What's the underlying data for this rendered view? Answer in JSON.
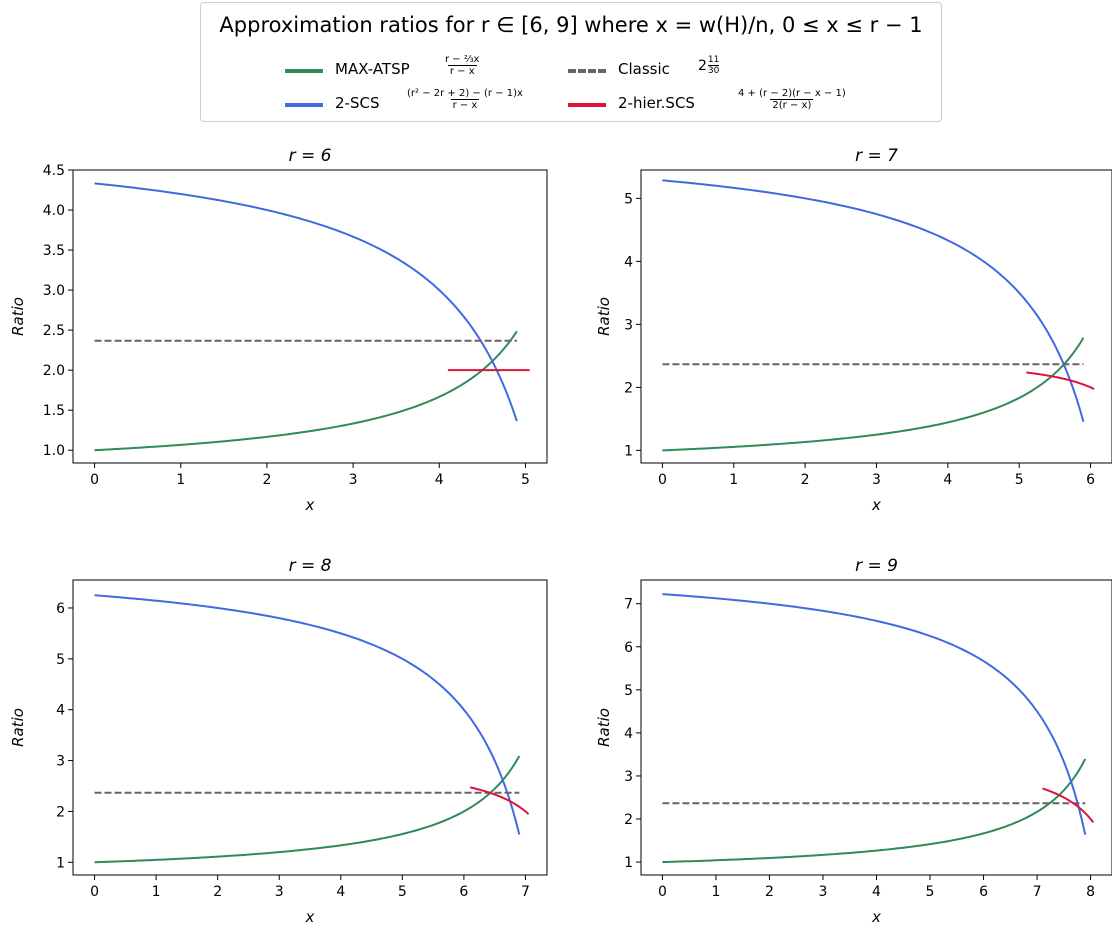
{
  "legend": {
    "title": "Approximation ratios for r ∈ [6, 9] where x = w(H)/n, 0 ≤ x ≤ r − 1",
    "items": [
      {
        "label": "MAX-ATSP",
        "formula_num": "r − ⅔x",
        "formula_den": "r − x",
        "color": "#2e8b57",
        "style": "solid"
      },
      {
        "label": "2-SCS",
        "formula_num": "(r² − 2r + 2) − (r − 1)x",
        "formula_den": "r − x",
        "color": "#4169e1",
        "style": "solid"
      },
      {
        "label": "Classic",
        "formula_whole": "2",
        "formula_num": "11",
        "formula_den": "30",
        "color": "#666666",
        "style": "dashed"
      },
      {
        "label": "2-hier.SCS",
        "formula_num": "4 + (r − 2)(r − x − 1)",
        "formula_den": "2(r − x)",
        "color": "#dc143c",
        "style": "solid"
      }
    ]
  },
  "chart_data": [
    {
      "type": "line",
      "title": "r = 6",
      "r": 6,
      "xlabel": "x",
      "ylabel": "Ratio",
      "xlim": [
        -0.25,
        5.25
      ],
      "ylim": [
        0.84,
        4.5
      ],
      "xticks": [
        0,
        1,
        2,
        3,
        4,
        5
      ],
      "yticks": [
        1.0,
        1.5,
        2.0,
        2.5,
        3.0,
        3.5,
        4.0,
        4.5
      ],
      "ytick_labels": [
        "1.0",
        "1.5",
        "2.0",
        "2.5",
        "3.0",
        "3.5",
        "4.0",
        "4.5"
      ],
      "series": [
        {
          "name": "MAX-ATSP",
          "color": "#2e8b57",
          "x": [
            0,
            1,
            2,
            3,
            4,
            4.5,
            4.9
          ],
          "y": [
            1.0,
            1.067,
            1.167,
            1.333,
            1.667,
            2.0,
            2.48
          ]
        },
        {
          "name": "2-SCS",
          "color": "#4169e1",
          "x": [
            0,
            1,
            2,
            3,
            4,
            4.5,
            4.9
          ],
          "y": [
            4.333,
            4.2,
            4.0,
            3.667,
            3.0,
            2.333,
            1.364
          ]
        },
        {
          "name": "Classic",
          "color": "#666666",
          "dashed": true,
          "x": [
            0,
            4.9
          ],
          "y": [
            2.367,
            2.367
          ]
        },
        {
          "name": "2-hier.SCS",
          "color": "#dc143c",
          "x": [
            4.1,
            5.05
          ],
          "y": [
            2.0,
            2.0
          ]
        }
      ]
    },
    {
      "type": "line",
      "title": "r = 7",
      "r": 7,
      "xlabel": "x",
      "ylabel": "Ratio",
      "xlim": [
        -0.3,
        6.3
      ],
      "ylim": [
        0.8,
        5.45
      ],
      "xticks": [
        0,
        1,
        2,
        3,
        4,
        5,
        6
      ],
      "yticks": [
        1,
        2,
        3,
        4,
        5
      ],
      "ytick_labels": [
        "1",
        "2",
        "3",
        "4",
        "5"
      ],
      "series": [
        {
          "name": "MAX-ATSP",
          "color": "#2e8b57",
          "x": [
            0,
            1,
            2,
            3,
            4,
            5,
            5.5,
            5.9
          ],
          "y": [
            1.0,
            1.056,
            1.133,
            1.25,
            1.444,
            1.833,
            2.222,
            2.79
          ]
        },
        {
          "name": "2-SCS",
          "color": "#4169e1",
          "x": [
            0,
            1,
            2,
            3,
            4,
            5,
            5.5,
            5.9
          ],
          "y": [
            5.286,
            5.167,
            5.0,
            4.75,
            4.333,
            3.5,
            2.667,
            1.455
          ]
        },
        {
          "name": "Classic",
          "color": "#666666",
          "dashed": true,
          "x": [
            0,
            5.9
          ],
          "y": [
            2.367,
            2.367
          ]
        },
        {
          "name": "2-hier.SCS",
          "color": "#dc143c",
          "x": [
            5.1,
            5.5,
            6.05
          ],
          "y": [
            2.24,
            2.16,
            1.99
          ]
        }
      ]
    },
    {
      "type": "line",
      "title": "r = 8",
      "r": 8,
      "xlabel": "x",
      "ylabel": "Ratio",
      "xlim": [
        -0.35,
        7.35
      ],
      "ylim": [
        0.75,
        6.55
      ],
      "xticks": [
        0,
        1,
        2,
        3,
        4,
        5,
        6,
        7
      ],
      "yticks": [
        1,
        2,
        3,
        4,
        5,
        6
      ],
      "ytick_labels": [
        "1",
        "2",
        "3",
        "4",
        "5",
        "6"
      ],
      "series": [
        {
          "name": "MAX-ATSP",
          "color": "#2e8b57",
          "x": [
            0,
            1,
            2,
            3,
            4,
            5,
            6,
            6.5,
            6.9
          ],
          "y": [
            1.0,
            1.048,
            1.111,
            1.2,
            1.333,
            1.556,
            2.0,
            2.444,
            3.09
          ]
        },
        {
          "name": "2-SCS",
          "color": "#4169e1",
          "x": [
            0,
            1,
            2,
            3,
            4,
            5,
            6,
            6.5,
            6.9
          ],
          "y": [
            6.25,
            6.143,
            6.0,
            5.8,
            5.5,
            5.0,
            4.0,
            3.0,
            1.545
          ]
        },
        {
          "name": "Classic",
          "color": "#666666",
          "dashed": true,
          "x": [
            0,
            6.9
          ],
          "y": [
            2.367,
            2.367
          ]
        },
        {
          "name": "2-hier.SCS",
          "color": "#dc143c",
          "x": [
            6.1,
            6.5,
            7.05
          ],
          "y": [
            2.47,
            2.38,
            1.97
          ]
        }
      ]
    },
    {
      "type": "line",
      "title": "r = 9",
      "r": 9,
      "xlabel": "x",
      "ylabel": "Ratio",
      "xlim": [
        -0.4,
        8.4
      ],
      "ylim": [
        0.7,
        7.55
      ],
      "xticks": [
        0,
        1,
        2,
        3,
        4,
        5,
        6,
        7,
        8
      ],
      "yticks": [
        1,
        2,
        3,
        4,
        5,
        6,
        7
      ],
      "ytick_labels": [
        "1",
        "2",
        "3",
        "4",
        "5",
        "6",
        "7"
      ],
      "series": [
        {
          "name": "MAX-ATSP",
          "color": "#2e8b57",
          "x": [
            0,
            1,
            2,
            3,
            4,
            5,
            6,
            7,
            7.5,
            7.9
          ],
          "y": [
            1.0,
            1.042,
            1.095,
            1.167,
            1.267,
            1.417,
            1.667,
            2.167,
            2.667,
            3.4
          ]
        },
        {
          "name": "2-SCS",
          "color": "#4169e1",
          "x": [
            0,
            1,
            2,
            3,
            4,
            5,
            6,
            7,
            7.5,
            7.9
          ],
          "y": [
            7.222,
            7.125,
            7.0,
            6.833,
            6.6,
            6.25,
            5.667,
            4.5,
            3.333,
            1.636
          ]
        },
        {
          "name": "Classic",
          "color": "#666666",
          "dashed": true,
          "x": [
            0,
            7.9
          ],
          "y": [
            2.367,
            2.367
          ]
        },
        {
          "name": "2-hier.SCS",
          "color": "#dc143c",
          "x": [
            7.1,
            7.5,
            8.05
          ],
          "y": [
            2.7,
            2.55,
            1.93
          ]
        }
      ]
    }
  ]
}
